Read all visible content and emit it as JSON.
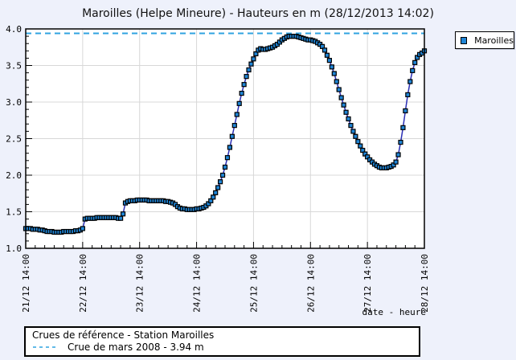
{
  "title": "Maroilles (Helpe Mineure) - Hauteurs en m (28/12/2013 14:02)",
  "legend": {
    "series_label": "Maroilles"
  },
  "info_box": {
    "line1": "Crues de référence - Station Maroilles",
    "line2": "Crue de mars 2008 - 3.94 m"
  },
  "colors": {
    "page_background": "#eef1fb",
    "plot_background": "#ffffff",
    "grid": "#d8d8d8",
    "axis": "#000000",
    "series_line": "#2b2fb5",
    "marker_fill": "#1f85d6",
    "marker_stroke": "#000000",
    "reference_line": "#2fa3e0"
  },
  "chart_data": {
    "type": "line",
    "title": "Maroilles (Helpe Mineure) - Hauteurs en m (28/12/2013 14:02)",
    "xlabel": "date - heure",
    "ylabel": "",
    "ylim": [
      1.0,
      4.0
    ],
    "y_major_tick": 0.5,
    "y_minor_tick": 0.1,
    "x_range_hours": [
      0,
      168
    ],
    "x_major_tick_hours": 24,
    "x_minor_tick_hours": 4,
    "x_tick_labels": [
      "21/12 14:00",
      "22/12 14:00",
      "23/12 14:00",
      "24/12 14:00",
      "25/12 14:00",
      "26/12 14:00",
      "27/12 14:00",
      "28/12 14:00"
    ],
    "grid": true,
    "legend_position": "top-right",
    "marker": "square",
    "reference_line": {
      "label": "Crue de mars 2008 - 3.94 m",
      "value": 3.94
    },
    "series": [
      {
        "name": "Maroilles",
        "start_label": "21/12 14:00",
        "step_hours": 1,
        "values": [
          1.27,
          1.27,
          1.27,
          1.26,
          1.26,
          1.26,
          1.25,
          1.25,
          1.24,
          1.23,
          1.23,
          1.23,
          1.22,
          1.22,
          1.22,
          1.22,
          1.23,
          1.23,
          1.23,
          1.23,
          1.23,
          1.24,
          1.24,
          1.25,
          1.27,
          1.4,
          1.41,
          1.41,
          1.41,
          1.41,
          1.42,
          1.42,
          1.42,
          1.42,
          1.42,
          1.42,
          1.42,
          1.42,
          1.42,
          1.41,
          1.41,
          1.47,
          1.62,
          1.64,
          1.65,
          1.65,
          1.65,
          1.66,
          1.66,
          1.66,
          1.66,
          1.66,
          1.65,
          1.65,
          1.65,
          1.65,
          1.65,
          1.65,
          1.65,
          1.64,
          1.64,
          1.63,
          1.62,
          1.6,
          1.57,
          1.55,
          1.54,
          1.54,
          1.53,
          1.53,
          1.53,
          1.53,
          1.54,
          1.54,
          1.55,
          1.56,
          1.58,
          1.61,
          1.65,
          1.7,
          1.76,
          1.83,
          1.91,
          2.0,
          2.11,
          2.24,
          2.38,
          2.53,
          2.68,
          2.83,
          2.98,
          3.12,
          3.24,
          3.35,
          3.44,
          3.52,
          3.59,
          3.66,
          3.71,
          3.73,
          3.72,
          3.72,
          3.73,
          3.74,
          3.75,
          3.77,
          3.79,
          3.82,
          3.85,
          3.87,
          3.89,
          3.9,
          3.9,
          3.9,
          3.9,
          3.89,
          3.88,
          3.87,
          3.86,
          3.85,
          3.85,
          3.84,
          3.83,
          3.81,
          3.79,
          3.76,
          3.71,
          3.64,
          3.57,
          3.48,
          3.39,
          3.28,
          3.17,
          3.06,
          2.96,
          2.86,
          2.77,
          2.68,
          2.6,
          2.53,
          2.46,
          2.4,
          2.34,
          2.29,
          2.25,
          2.21,
          2.18,
          2.15,
          2.13,
          2.11,
          2.1,
          2.1,
          2.1,
          2.11,
          2.12,
          2.14,
          2.18,
          2.28,
          2.45,
          2.65,
          2.88,
          3.1,
          3.28,
          3.43,
          3.54,
          3.61,
          3.65,
          3.67,
          3.7
        ]
      }
    ]
  }
}
